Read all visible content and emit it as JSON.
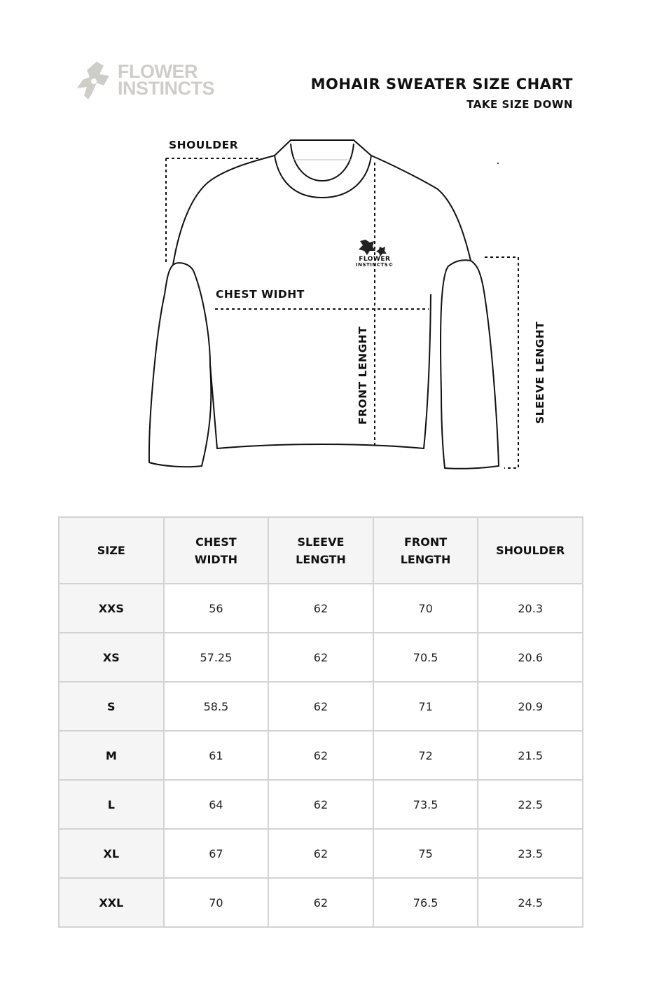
{
  "brand": {
    "logo_text_line1": "FLOWER",
    "logo_text_line2": "INSTINCTS",
    "logo_color": "#cfcdc8"
  },
  "header": {
    "title": "MOHAIR SWEATER SIZE CHART",
    "subtitle": "TAKE SIZE DOWN"
  },
  "diagram": {
    "labels": {
      "shoulder": "SHOULDER",
      "chest": "CHEST WIDHT",
      "front": "FRONT LENGHT",
      "sleeve": "SLEEVE LENGHT"
    },
    "chest_logo": {
      "line1": "FLOWER",
      "line2": "INSTINCTS©"
    }
  },
  "table": {
    "headers": [
      [
        "SIZE"
      ],
      [
        "CHEST",
        "WIDTH"
      ],
      [
        "SLEEVE",
        "LENGTH"
      ],
      [
        "FRONT",
        "LENGTH"
      ],
      [
        "SHOULDER"
      ]
    ],
    "rows": [
      [
        "XXS",
        "56",
        "62",
        "70",
        "20.3"
      ],
      [
        "XS",
        "57.25",
        "62",
        "70.5",
        "20.6"
      ],
      [
        "S",
        "58.5",
        "62",
        "71",
        "20.9"
      ],
      [
        "M",
        "61",
        "62",
        "72",
        "21.5"
      ],
      [
        "L",
        "64",
        "62",
        "73.5",
        "22.5"
      ],
      [
        "XL",
        "67",
        "62",
        "75",
        "23.5"
      ],
      [
        "XXL",
        "70",
        "62",
        "76.5",
        "24.5"
      ]
    ]
  }
}
